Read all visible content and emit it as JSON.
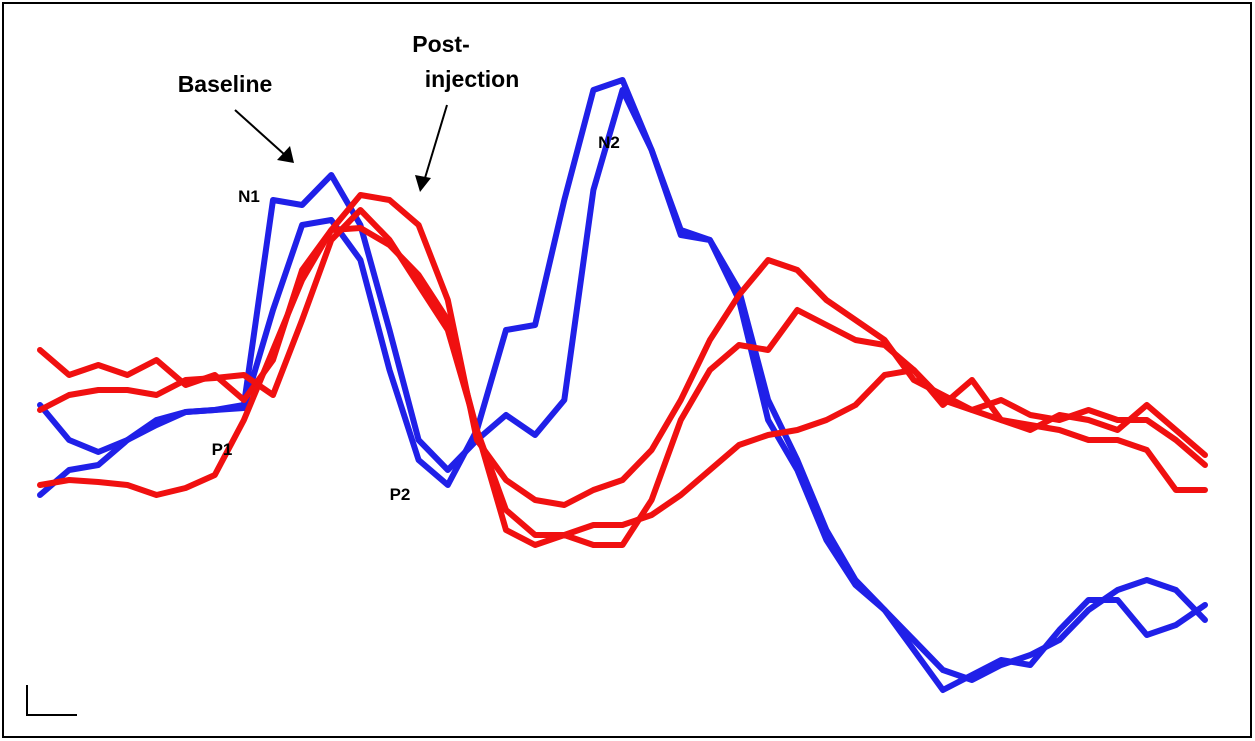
{
  "chart_data": {
    "type": "line",
    "x": [
      0,
      1,
      2,
      3,
      4,
      5,
      6,
      7,
      8,
      9,
      10,
      11,
      12,
      13,
      14,
      15,
      16,
      17,
      18,
      19,
      20,
      21,
      22,
      23,
      24,
      25,
      26,
      27,
      28,
      29,
      30,
      31,
      32,
      33,
      34,
      35,
      36,
      37,
      38,
      39,
      40
    ],
    "xlim": [
      0,
      40
    ],
    "ylim": [
      741,
      0
    ],
    "series": [
      {
        "color": "#2020e8",
        "values": [
          405,
          440,
          452,
          440,
          425,
          412,
          410,
          405,
          200,
          205,
          175,
          225,
          330,
          440,
          470,
          440,
          415,
          435,
          400,
          190,
          90,
          150,
          230,
          240,
          290,
          400,
          460,
          530,
          580,
          610,
          640,
          670,
          680,
          665,
          655,
          640,
          610,
          590,
          580,
          590,
          620
        ]
      },
      {
        "color": "#2020e8",
        "values": [
          495,
          470,
          465,
          440,
          420,
          412,
          410,
          408,
          310,
          225,
          220,
          260,
          370,
          460,
          485,
          430,
          330,
          325,
          200,
          90,
          80,
          150,
          235,
          240,
          300,
          420,
          470,
          540,
          585,
          610,
          650,
          690,
          675,
          660,
          665,
          630,
          600,
          600,
          635,
          625,
          605
        ]
      },
      {
        "color": "#f01010",
        "values": [
          350,
          375,
          365,
          375,
          360,
          385,
          375,
          400,
          360,
          270,
          230,
          195,
          200,
          225,
          300,
          440,
          480,
          500,
          505,
          490,
          480,
          450,
          400,
          340,
          295,
          260,
          270,
          300,
          320,
          340,
          380,
          395,
          410,
          400,
          415,
          420,
          410,
          420,
          420,
          440,
          465
        ]
      },
      {
        "color": "#f01010",
        "values": [
          410,
          395,
          390,
          390,
          395,
          380,
          378,
          375,
          395,
          320,
          240,
          210,
          240,
          285,
          330,
          430,
          530,
          545,
          535,
          545,
          545,
          500,
          420,
          370,
          345,
          350,
          310,
          325,
          340,
          345,
          370,
          405,
          380,
          420,
          430,
          415,
          420,
          430,
          405,
          430,
          455
        ]
      },
      {
        "color": "#f01010",
        "values": [
          485,
          480,
          482,
          485,
          495,
          488,
          475,
          420,
          350,
          280,
          230,
          228,
          245,
          275,
          320,
          430,
          510,
          535,
          535,
          525,
          525,
          515,
          495,
          470,
          445,
          435,
          430,
          420,
          405,
          375,
          370,
          400,
          410,
          420,
          425,
          430,
          440,
          440,
          450,
          490,
          490
        ]
      }
    ],
    "annotations": [
      "Baseline",
      "Post-",
      "injection",
      "N1",
      "P1",
      "P2",
      "N2"
    ]
  }
}
